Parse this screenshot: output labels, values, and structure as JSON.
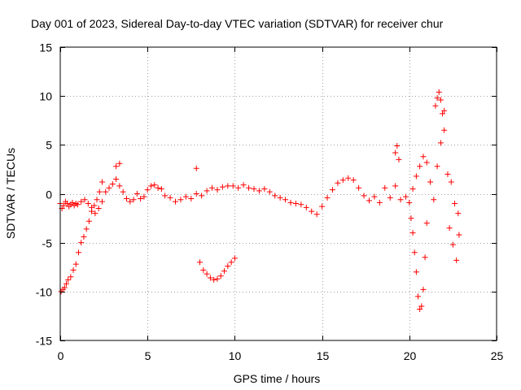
{
  "chart_data": {
    "type": "scatter",
    "title": "Day 001 of 2023, Sidereal Day-to-day VTEC variation (SDTVAR) for receiver chur",
    "xlabel": "GPS time / hours",
    "ylabel": "SDTVAR / TECUs",
    "xlim": [
      0,
      25
    ],
    "ylim": [
      -15,
      15
    ],
    "xticks": [
      0,
      5,
      10,
      15,
      20,
      25
    ],
    "yticks": [
      -15,
      -10,
      -5,
      0,
      5,
      10,
      15
    ],
    "xtick_labels": [
      "0",
      "5",
      "10",
      "15",
      "20",
      "25"
    ],
    "ytick_labels": [
      "-15",
      "-10",
      "-5",
      "0",
      "5",
      "10",
      "15"
    ],
    "grid": true,
    "marker": "+",
    "series": [
      {
        "name": "SDTVAR",
        "color": "#ff0000",
        "x": [
          0.0,
          0.1,
          0.2,
          0.3,
          0.4,
          0.5,
          0.6,
          0.7,
          0.8,
          0.9,
          1.0,
          1.2,
          1.4,
          1.6,
          1.8,
          2.0,
          2.2,
          2.4,
          2.6,
          2.8,
          3.0,
          3.2,
          3.4,
          3.6,
          3.8,
          4.0,
          4.2,
          4.4,
          4.6,
          4.8,
          5.0,
          5.2,
          5.4,
          5.6,
          5.8,
          6.0,
          6.3,
          6.6,
          6.9,
          7.2,
          7.5,
          7.8,
          8.1,
          8.4,
          8.7,
          9.0,
          9.3,
          9.6,
          9.9,
          10.2,
          10.5,
          10.8,
          11.1,
          11.4,
          11.7,
          12.0,
          12.3,
          12.6,
          12.9,
          13.2,
          13.5,
          13.8,
          14.1,
          14.4,
          14.7,
          15.0,
          15.3,
          15.6,
          15.9,
          16.2,
          16.5,
          16.8,
          17.1,
          17.4,
          17.7,
          18.0,
          18.3,
          18.6,
          18.9,
          19.2,
          19.5,
          19.8,
          20.0,
          20.2,
          20.4,
          20.6,
          20.8,
          21.0,
          21.2,
          21.4,
          21.6,
          21.8,
          22.0,
          22.2,
          22.4,
          22.6,
          22.8,
          0.05,
          0.15,
          0.25,
          0.35,
          0.45,
          0.6,
          0.75,
          0.9,
          1.05,
          1.2,
          1.35,
          1.5,
          1.65,
          1.8,
          1.95,
          2.1,
          2.25,
          2.4,
          8.0,
          8.2,
          8.4,
          8.6,
          8.8,
          9.0,
          9.2,
          9.4,
          9.6,
          9.8,
          10.0,
          20.1,
          20.2,
          20.3,
          20.4,
          20.5,
          20.6,
          20.7,
          20.8,
          20.9,
          21.0,
          21.5,
          21.6,
          21.7,
          21.8,
          21.9,
          22.0,
          22.3,
          22.5,
          22.7,
          22.85,
          19.2,
          19.3,
          19.4,
          3.2,
          3.4,
          7.8
        ],
        "y": [
          -1.0,
          -1.5,
          -1.2,
          -0.8,
          -1.0,
          -1.3,
          -1.1,
          -0.9,
          -1.2,
          -1.0,
          -1.1,
          -0.8,
          -0.6,
          -1.0,
          -1.4,
          -2.0,
          -1.5,
          -0.8,
          0.2,
          0.6,
          1.0,
          1.5,
          0.8,
          0.2,
          -0.5,
          -0.8,
          -0.6,
          0.0,
          -0.5,
          -0.3,
          0.4,
          0.8,
          0.9,
          0.6,
          0.5,
          -0.2,
          -0.4,
          -0.8,
          -0.6,
          -0.3,
          -0.5,
          0.0,
          -0.2,
          0.3,
          0.6,
          0.4,
          0.7,
          0.8,
          0.8,
          0.6,
          0.9,
          0.6,
          0.5,
          0.3,
          0.5,
          0.2,
          -0.2,
          -0.4,
          -0.6,
          -0.9,
          -1.0,
          -1.1,
          -1.4,
          -1.8,
          -2.1,
          -1.3,
          -0.4,
          0.4,
          1.1,
          1.4,
          1.6,
          1.4,
          0.6,
          -0.2,
          -0.7,
          -0.3,
          -0.9,
          0.6,
          -0.4,
          0.8,
          -0.6,
          -0.3,
          -0.9,
          0.5,
          1.8,
          2.8,
          3.8,
          3.2,
          1.2,
          -0.6,
          2.8,
          5.2,
          8.5,
          2.0,
          1.2,
          -1.0,
          -2.0,
          -10.0,
          -9.8,
          -9.6,
          -9.2,
          -8.8,
          -8.5,
          -7.8,
          -7.2,
          -6.0,
          -5.0,
          -4.4,
          -3.6,
          -2.8,
          -1.8,
          -1.2,
          -0.6,
          0.2,
          1.2,
          -7.0,
          -7.8,
          -8.2,
          -8.6,
          -8.8,
          -8.7,
          -8.4,
          -7.9,
          -7.4,
          -7.0,
          -6.6,
          -2.5,
          -4.0,
          -6.0,
          -8.0,
          -10.5,
          -11.8,
          -11.5,
          -9.8,
          -6.5,
          -3.0,
          9.0,
          9.8,
          10.4,
          9.6,
          8.2,
          6.5,
          -3.5,
          -5.2,
          -6.8,
          -4.2,
          4.2,
          4.9,
          3.5,
          2.8,
          3.1,
          2.6
        ]
      }
    ]
  }
}
